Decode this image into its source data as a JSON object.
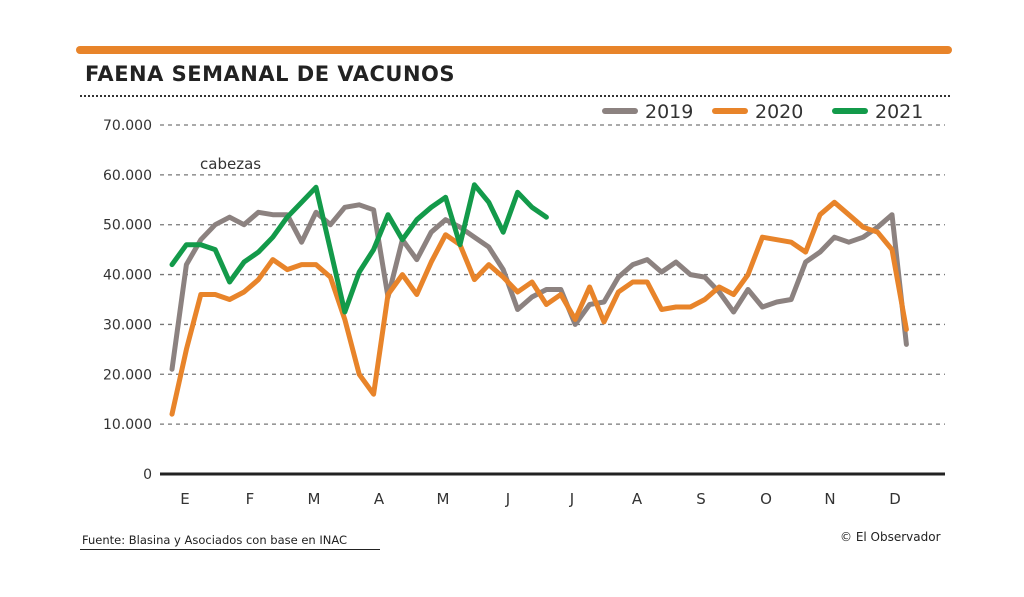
{
  "header": {
    "title": "FAENA SEMANAL DE VACUNOS"
  },
  "footer": {
    "source": "Fuente: Blasina y Asociados con base en INAC",
    "credit": "© El Observador"
  },
  "chart_data": {
    "type": "line",
    "title": "FAENA SEMANAL DE VACUNOS",
    "ylabel": "cabezas",
    "ylim": [
      0,
      70000
    ],
    "yticks": [
      "0",
      "10.000",
      "20.000",
      "30.000",
      "40.000",
      "50.000",
      "60.000",
      "70.000"
    ],
    "xticks": [
      "E",
      "F",
      "M",
      "A",
      "M",
      "J",
      "J",
      "A",
      "S",
      "O",
      "N",
      "D"
    ],
    "x_unit": "week of year (1-52)",
    "grid": true,
    "legend": "top-right",
    "series": [
      {
        "name": "2019",
        "color": "#8c8280",
        "values": [
          21000,
          42000,
          47000,
          50000,
          51500,
          50000,
          52500,
          52000,
          52000,
          46500,
          52500,
          50000,
          53500,
          54000,
          53000,
          35500,
          47000,
          43000,
          48500,
          51000,
          49500,
          47500,
          45500,
          41000,
          33000,
          35500,
          37000,
          37000,
          30000,
          34000,
          34500,
          39500,
          42000,
          43000,
          40500,
          42500,
          40000,
          39500,
          36500,
          32500,
          37000,
          33500,
          34500,
          35000,
          42500,
          44500,
          47500,
          46500,
          47500,
          49500,
          52000,
          26000
        ]
      },
      {
        "name": "2020",
        "color": "#e8842a",
        "values": [
          12000,
          25000,
          36000,
          36000,
          35000,
          36500,
          39000,
          43000,
          41000,
          42000,
          42000,
          39500,
          31000,
          20000,
          16000,
          36000,
          40000,
          36000,
          42500,
          48000,
          46000,
          39000,
          42000,
          39500,
          36500,
          38500,
          34000,
          36000,
          31000,
          37500,
          30500,
          36500,
          38500,
          38500,
          33000,
          33500,
          33500,
          35000,
          37500,
          36000,
          40000,
          47500,
          47000,
          46500,
          44500,
          52000,
          54500,
          52000,
          49500,
          48500,
          45000,
          29000
        ]
      },
      {
        "name": "2021",
        "color": "#139a4a",
        "values": [
          42000,
          46000,
          46000,
          45000,
          38500,
          42500,
          44500,
          47500,
          51500,
          54500,
          57500,
          45000,
          32500,
          40500,
          45000,
          52000,
          47000,
          51000,
          53500,
          55500,
          46000,
          58000,
          54500,
          48500,
          56500,
          53500,
          51500
        ]
      }
    ]
  }
}
